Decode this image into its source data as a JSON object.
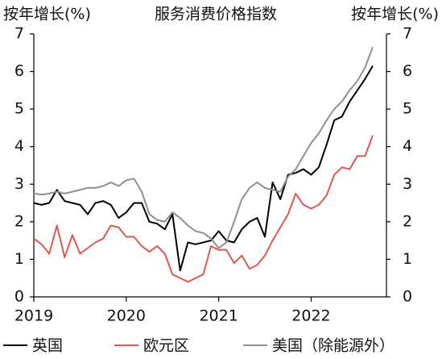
{
  "chart_data": {
    "type": "line",
    "title": "服务消费价格指数",
    "ylabel": "按年增长(%)",
    "y2label": "按年增长(%)",
    "categories": [
      "2019",
      null,
      null,
      null,
      null,
      null,
      null,
      null,
      null,
      null,
      null,
      null,
      "2020",
      null,
      null,
      null,
      null,
      null,
      null,
      null,
      null,
      null,
      null,
      null,
      "2021",
      null,
      null,
      null,
      null,
      null,
      null,
      null,
      null,
      null,
      null,
      null,
      "2022",
      null,
      null,
      null,
      null,
      null,
      null,
      null,
      null
    ],
    "series": [
      {
        "name": "英国",
        "color": "#000000",
        "values": [
          2.5,
          2.45,
          2.5,
          2.85,
          2.55,
          2.5,
          2.45,
          2.2,
          2.5,
          2.55,
          2.45,
          2.1,
          2.25,
          2.5,
          2.5,
          2.0,
          1.95,
          1.8,
          2.2,
          0.7,
          1.45,
          1.4,
          1.45,
          1.5,
          1.75,
          1.5,
          1.45,
          1.8,
          2.0,
          2.1,
          1.6,
          3.05,
          2.6,
          3.25,
          3.3,
          3.4,
          3.25,
          3.45,
          4.05,
          4.7,
          4.8,
          5.2,
          5.5,
          5.8,
          6.15
        ]
      },
      {
        "name": "欧元区",
        "color": "#e0574d",
        "values": [
          1.55,
          1.4,
          1.15,
          1.9,
          1.05,
          1.65,
          1.15,
          1.3,
          1.45,
          1.55,
          1.9,
          1.85,
          1.6,
          1.6,
          1.35,
          1.2,
          1.35,
          1.15,
          0.6,
          0.5,
          0.4,
          0.5,
          0.6,
          1.35,
          1.25,
          1.25,
          0.9,
          1.1,
          0.75,
          0.85,
          1.1,
          1.5,
          1.85,
          2.2,
          2.75,
          2.45,
          2.35,
          2.45,
          2.7,
          3.25,
          3.45,
          3.4,
          3.75,
          3.75,
          4.3
        ]
      },
      {
        "name": "美国（除能源外）",
        "color": "#8f8f8f",
        "axis": "y2",
        "values": [
          2.75,
          2.72,
          2.75,
          2.8,
          2.75,
          2.8,
          2.85,
          2.9,
          2.9,
          2.95,
          3.05,
          2.95,
          3.1,
          3.15,
          2.8,
          2.2,
          2.05,
          2.0,
          2.25,
          2.1,
          1.9,
          1.75,
          1.7,
          1.55,
          1.3,
          1.45,
          2.0,
          2.6,
          2.9,
          3.05,
          2.9,
          2.85,
          2.8,
          3.2,
          3.4,
          3.75,
          4.1,
          4.35,
          4.7,
          5.0,
          5.2,
          5.5,
          5.75,
          6.1,
          6.65
        ]
      }
    ],
    "ylim": [
      0,
      7
    ],
    "yticks": [
      0,
      1,
      2,
      3,
      4,
      5,
      6,
      7
    ],
    "y2lim": [
      0,
      7
    ],
    "y2ticks": [
      0,
      1,
      2,
      3,
      4,
      5,
      6,
      7
    ],
    "legend": "bottom"
  }
}
